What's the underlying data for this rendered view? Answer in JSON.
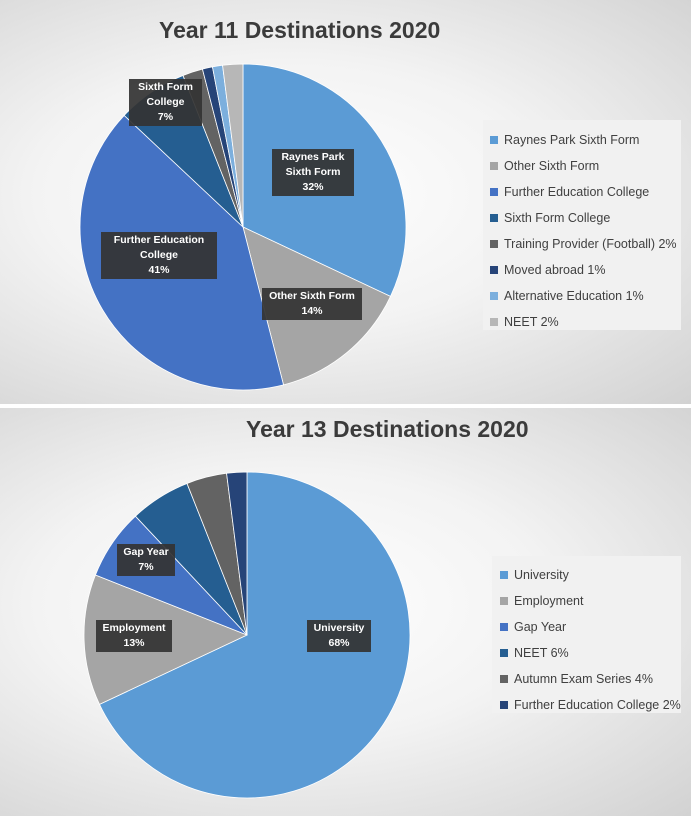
{
  "chart_data": [
    {
      "type": "pie",
      "title": "Year 11 Destinations 2020",
      "legend_position": "right",
      "slices": [
        {
          "name": "Raynes Park Sixth Form",
          "value": 32,
          "color": "#5b9bd5",
          "label": [
            "Raynes Park",
            "Sixth Form",
            "32%"
          ]
        },
        {
          "name": "Other Sixth Form",
          "value": 14,
          "color": "#a5a5a5",
          "label": [
            "Other Sixth Form",
            "14%"
          ]
        },
        {
          "name": "Further Education College",
          "value": 41,
          "color": "#4472c4",
          "label": [
            "Further Education",
            "College",
            "41%"
          ]
        },
        {
          "name": "Sixth Form College",
          "value": 7,
          "color": "#255e91",
          "label": [
            "Sixth Form",
            "College",
            "7%"
          ]
        },
        {
          "name": "Training Provider (Football) 2%",
          "value": 2,
          "color": "#636363"
        },
        {
          "name": "Moved abroad 1%",
          "value": 1,
          "color": "#264478"
        },
        {
          "name": "Alternative Education 1%",
          "value": 1,
          "color": "#7cafdd"
        },
        {
          "name": "NEET 2%",
          "value": 2,
          "color": "#b7b7b7"
        }
      ]
    },
    {
      "type": "pie",
      "title": "Year 13 Destinations 2020",
      "legend_position": "right",
      "slices": [
        {
          "name": "University",
          "value": 68,
          "color": "#5b9bd5",
          "label": [
            "University",
            "68%"
          ]
        },
        {
          "name": "Employment",
          "value": 13,
          "color": "#a5a5a5",
          "label": [
            "Employment",
            "13%"
          ]
        },
        {
          "name": "Gap Year",
          "value": 7,
          "color": "#4472c4",
          "label": [
            "Gap Year",
            "7%"
          ]
        },
        {
          "name": "NEET 6%",
          "value": 6,
          "color": "#255e91"
        },
        {
          "name": "Autumn Exam Series 4%",
          "value": 4,
          "color": "#636363"
        },
        {
          "name": "Further Education College 2%",
          "value": 2,
          "color": "#264478"
        }
      ]
    }
  ]
}
